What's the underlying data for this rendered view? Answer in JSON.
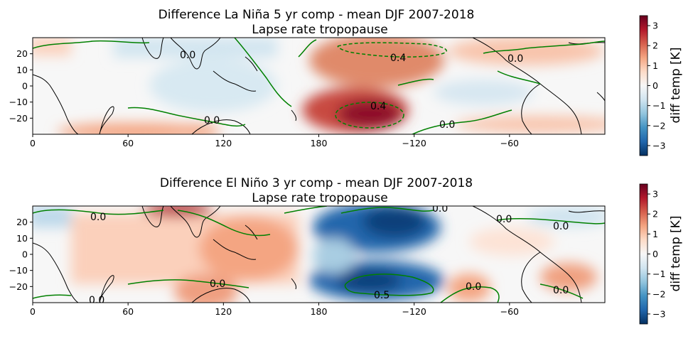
{
  "colorscale": [
    "#053061",
    "#2166ac",
    "#4393c3",
    "#92c5de",
    "#d1e5f0",
    "#f7f7f7",
    "#fddbc7",
    "#f4a582",
    "#d6604d",
    "#b2182b",
    "#67001f"
  ],
  "coast_color": "#000000",
  "contour_color": "#008000",
  "chart_data": [
    {
      "type": "heatmap",
      "title": "Difference La Niña 5 yr comp - mean DJF 2007-2018",
      "subtitle": "Lapse rate tropopause",
      "x_ticks": [
        0,
        60,
        120,
        180,
        -120,
        -60
      ],
      "y_ticks": [
        20,
        10,
        0,
        -10,
        -20
      ],
      "xlim": [
        0,
        360
      ],
      "ylim": [
        -30,
        30
      ],
      "colorbar": {
        "label": "diff temp [K]",
        "ticks": [
          3,
          2,
          1,
          0,
          -1,
          -2,
          -3
        ],
        "vmin": -3.5,
        "vmax": 3.5
      },
      "contour_labels": [
        "0.0",
        "0.4",
        "0.4",
        "0.0",
        "0.0",
        "0.0"
      ]
    },
    {
      "type": "heatmap",
      "title": "Difference El Niño 3 yr comp - mean DJF 2007-2018",
      "subtitle": "Lapse rate tropopause",
      "x_ticks": [
        0,
        60,
        120,
        180,
        -120,
        -60
      ],
      "y_ticks": [
        20,
        10,
        0,
        -10,
        -20
      ],
      "xlim": [
        0,
        360
      ],
      "ylim": [
        -30,
        30
      ],
      "colorbar": {
        "label": "diff temp [K]",
        "ticks": [
          3,
          2,
          1,
          0,
          -1,
          -2,
          -3
        ],
        "vmin": -3.5,
        "vmax": 3.5
      },
      "contour_labels": [
        "0.0",
        "0.0",
        "0.0",
        "0.0",
        "0.5",
        "0.0",
        "0.0",
        "0.0",
        "0.0"
      ]
    }
  ]
}
